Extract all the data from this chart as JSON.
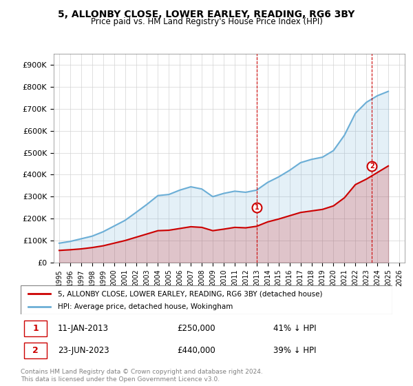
{
  "title": "5, ALLONBY CLOSE, LOWER EARLEY, READING, RG6 3BY",
  "subtitle": "Price paid vs. HM Land Registry's House Price Index (HPI)",
  "ylabel": "",
  "ylim": [
    0,
    950000
  ],
  "yticks": [
    0,
    100000,
    200000,
    300000,
    400000,
    500000,
    600000,
    700000,
    800000,
    900000
  ],
  "ytick_labels": [
    "£0",
    "£100K",
    "£200K",
    "£300K",
    "£400K",
    "£500K",
    "£600K",
    "£700K",
    "£800K",
    "£900K"
  ],
  "legend_line1": "5, ALLONBY CLOSE, LOWER EARLEY, READING, RG6 3BY (detached house)",
  "legend_line2": "HPI: Average price, detached house, Wokingham",
  "hpi_color": "#6baed6",
  "price_color": "#cc0000",
  "marker1_label": "1",
  "marker1_date": "11-JAN-2013",
  "marker1_price": "£250,000",
  "marker1_pct": "41% ↓ HPI",
  "marker2_label": "2",
  "marker2_date": "23-JUN-2023",
  "marker2_price": "£440,000",
  "marker2_pct": "39% ↓ HPI",
  "footer1": "Contains HM Land Registry data © Crown copyright and database right 2024.",
  "footer2": "This data is licensed under the Open Government Licence v3.0.",
  "hpi_x": [
    1995,
    1996,
    1997,
    1998,
    1999,
    2000,
    2001,
    2002,
    2003,
    2004,
    2005,
    2006,
    2007,
    2008,
    2009,
    2010,
    2011,
    2012,
    2013,
    2014,
    2015,
    2016,
    2017,
    2018,
    2019,
    2020,
    2021,
    2022,
    2023,
    2024,
    2025
  ],
  "hpi_y": [
    88000,
    96000,
    108000,
    120000,
    140000,
    166000,
    192000,
    228000,
    265000,
    305000,
    310000,
    330000,
    345000,
    335000,
    300000,
    315000,
    325000,
    320000,
    330000,
    365000,
    390000,
    420000,
    455000,
    470000,
    480000,
    510000,
    580000,
    680000,
    730000,
    760000,
    780000
  ],
  "price_x": [
    1995,
    1996,
    1997,
    1998,
    1999,
    2000,
    2001,
    2002,
    2003,
    2004,
    2005,
    2006,
    2007,
    2008,
    2009,
    2010,
    2011,
    2012,
    2013,
    2014,
    2015,
    2016,
    2017,
    2018,
    2019,
    2020,
    2021,
    2022,
    2023,
    2024,
    2025
  ],
  "price_y": [
    55000,
    58000,
    62000,
    68000,
    76000,
    88000,
    100000,
    115000,
    130000,
    145000,
    147000,
    155000,
    163000,
    160000,
    145000,
    152000,
    160000,
    158000,
    165000,
    185000,
    198000,
    213000,
    228000,
    235000,
    242000,
    258000,
    295000,
    355000,
    380000,
    410000,
    440000
  ],
  "marker1_x": 2013.0,
  "marker1_y": 250000,
  "marker2_x": 2023.5,
  "marker2_y": 440000,
  "xlim_start": 1994.5,
  "xlim_end": 2026.5,
  "xticks": [
    1995,
    1996,
    1997,
    1998,
    1999,
    2000,
    2001,
    2002,
    2003,
    2004,
    2005,
    2006,
    2007,
    2008,
    2009,
    2010,
    2011,
    2012,
    2013,
    2014,
    2015,
    2016,
    2017,
    2018,
    2019,
    2020,
    2021,
    2022,
    2023,
    2024,
    2025,
    2026
  ]
}
